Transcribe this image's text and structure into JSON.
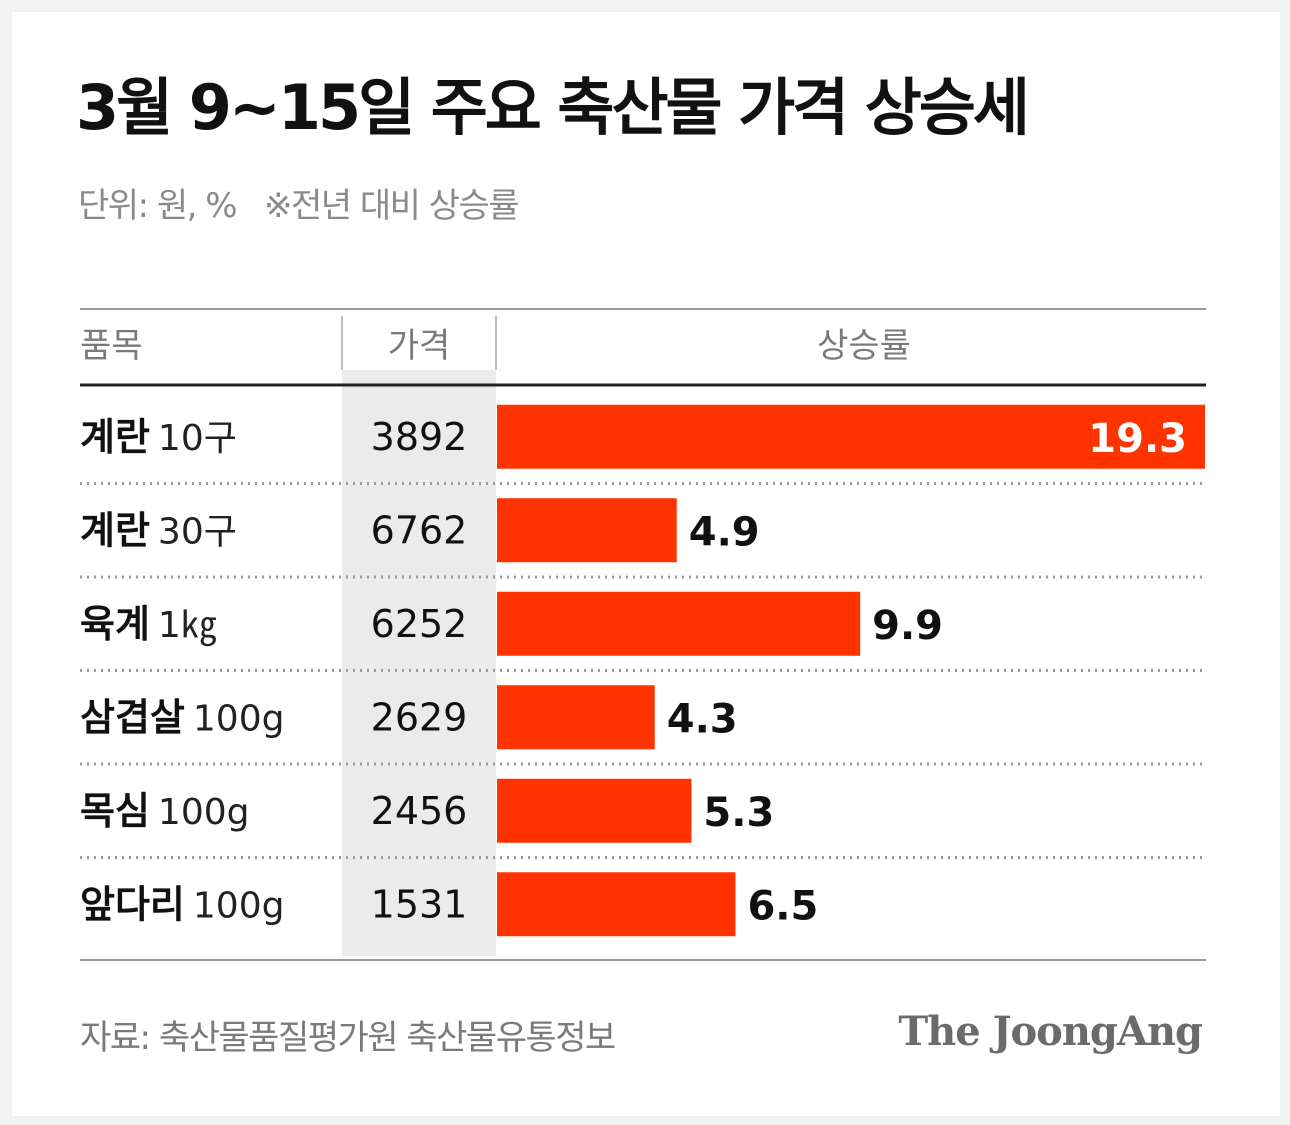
{
  "title": "3월 9~15일 주요 축산물 가격 상승세",
  "unit_note": "단위: 원, %",
  "comparison_note": "※전년 대비 상승률",
  "headers": {
    "item": "품목",
    "price": "가격",
    "rate": "상승률"
  },
  "rows": [
    {
      "name": "계란",
      "spec": "10구",
      "price": "3892",
      "rate_label": "19.3"
    },
    {
      "name": "계란",
      "spec": "30구",
      "price": "6762",
      "rate_label": "4.9"
    },
    {
      "name": "육계",
      "spec": "1㎏",
      "price": "6252",
      "rate_label": "9.9"
    },
    {
      "name": "삼겹살",
      "spec": "100g",
      "price": "2629",
      "rate_label": "4.3"
    },
    {
      "name": "목심",
      "spec": "100g",
      "price": "2456",
      "rate_label": "5.3"
    },
    {
      "name": "앞다리",
      "spec": "100g",
      "price": "1531",
      "rate_label": "6.5"
    }
  ],
  "chart_data": {
    "type": "bar",
    "orientation": "horizontal",
    "categories": [
      "계란 10구",
      "계란 30구",
      "육계 1㎏",
      "삼겹살 100g",
      "목심 100g",
      "앞다리 100g"
    ],
    "values": [
      19.3,
      4.9,
      9.9,
      4.3,
      5.3,
      6.5
    ],
    "prices": [
      3892,
      6762,
      6252,
      2629,
      2456,
      1531
    ],
    "xlim": [
      0,
      19.3
    ],
    "grid": false,
    "bar_color": "#ff3300",
    "highlight_label_color": "#ffffff",
    "label_color": "#111111"
  },
  "source": "자료: 축산물품질평가원 축산물유통정보",
  "logo": "The JoongAng"
}
